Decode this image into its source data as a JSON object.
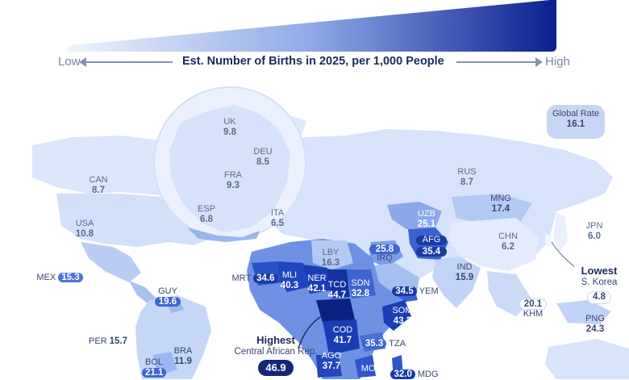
{
  "legend": {
    "title": "Est. Number of Births in 2025, per 1,000 People",
    "low": "Low",
    "high": "High",
    "colors": [
      "#e6eefc",
      "#0a1f8f"
    ]
  },
  "global_rate": {
    "label": "Global Rate",
    "value": "16.1"
  },
  "countries": [
    {
      "code": "UK",
      "value": "9.8"
    },
    {
      "code": "DEU",
      "value": "8.5"
    },
    {
      "code": "FRA",
      "value": "9.3"
    },
    {
      "code": "ESP",
      "value": "6.8"
    },
    {
      "code": "ITA",
      "value": "6.5"
    },
    {
      "code": "CAN",
      "value": "8.7"
    },
    {
      "code": "USA",
      "value": "10.8"
    },
    {
      "code": "RUS",
      "value": "8.7"
    },
    {
      "code": "MNG",
      "value": "17.4"
    },
    {
      "code": "UZB",
      "value": "25.1"
    },
    {
      "code": "AFG",
      "value": "35.4"
    },
    {
      "code": "CHN",
      "value": "6.2"
    },
    {
      "code": "JPN",
      "value": "6.0"
    },
    {
      "code": "LBY",
      "value": "16.3"
    },
    {
      "code": "IRQ",
      "value": "25.8"
    },
    {
      "code": "IND",
      "value": "15.9"
    },
    {
      "code": "MEX",
      "value": "15.3"
    },
    {
      "code": "MRT",
      "value": "34.6"
    },
    {
      "code": "MLI",
      "value": "40.3"
    },
    {
      "code": "NER",
      "value": "42.1"
    },
    {
      "code": "TCD",
      "value": "44.7"
    },
    {
      "code": "SDN",
      "value": "32.8"
    },
    {
      "code": "YEM",
      "value": "34.5"
    },
    {
      "code": "SOM",
      "value": "43.3"
    },
    {
      "code": "GUY",
      "value": "19.6"
    },
    {
      "code": "KHM",
      "value": "20.1"
    },
    {
      "code": "PNG",
      "value": "24.3"
    },
    {
      "code": "PER",
      "value": "15.7"
    },
    {
      "code": "COD",
      "value": "41.7"
    },
    {
      "code": "TZA",
      "value": "35.3"
    },
    {
      "code": "BOL",
      "value": "21.1"
    },
    {
      "code": "BRA",
      "value": "11.9"
    },
    {
      "code": "AGO",
      "value": "37.7"
    },
    {
      "code": "MOZ",
      "value": ""
    },
    {
      "code": "MDG",
      "value": "32.0"
    }
  ],
  "highest": {
    "title": "Highest",
    "country": "Central African Rep.",
    "value": "46.9"
  },
  "lowest": {
    "title": "Lowest",
    "country": "S. Korea",
    "value": "4.8"
  }
}
